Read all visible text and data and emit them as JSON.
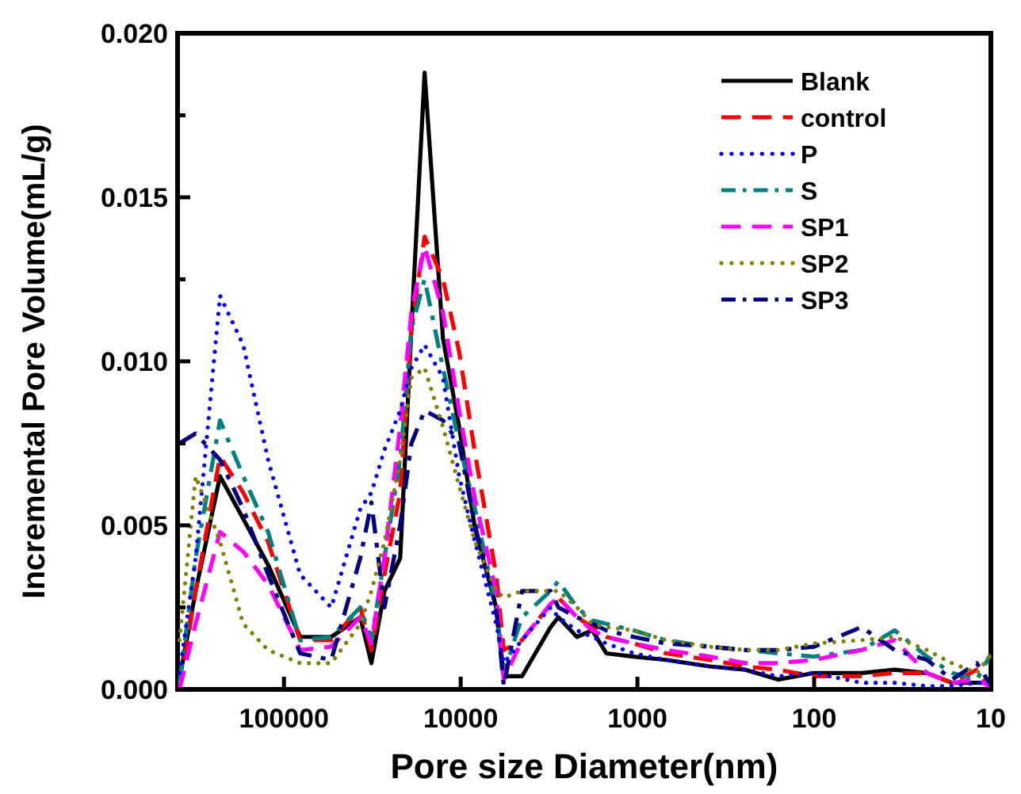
{
  "chart_data": {
    "type": "line",
    "xlabel": "Pore size Diameter(nm)",
    "ylabel": "Incremental Pore Volume(mL/g)",
    "log": "x",
    "xlim": [
      400000,
      10
    ],
    "xticks": [
      100000,
      10000,
      1000,
      100,
      10
    ],
    "ylim": [
      0,
      0.02
    ],
    "yticks": [
      {
        "value": 0,
        "label": "0.000"
      },
      {
        "value": 0.0025,
        "label": null
      },
      {
        "value": 0.005,
        "label": "0.005"
      },
      {
        "value": 0.0075,
        "label": null
      },
      {
        "value": 0.01,
        "label": "0.010"
      },
      {
        "value": 0.0125,
        "label": null
      },
      {
        "value": 0.015,
        "label": "0.015"
      },
      {
        "value": 0.0175,
        "label": null
      },
      {
        "value": 0.02,
        "label": "0.020"
      }
    ],
    "grid": false,
    "legend": "top right",
    "marker": "none",
    "x": [
      390000,
      316000,
      230000,
      170000,
      123000,
      81000,
      54000,
      37000,
      32000,
      27000,
      22000,
      19000,
      16000,
      12600,
      10200,
      8300,
      6300,
      5700,
      4500,
      3100,
      2800,
      2200,
      1800,
      1500,
      1050,
      690,
      390,
      245,
      160,
      100,
      54,
      35,
      23,
      16.6,
      12,
      10.2
    ],
    "series": [
      {
        "name": "Blank",
        "color": "#000000",
        "line_style": "solid",
        "values": [
          0.0003,
          0.003,
          0.0065,
          0.0052,
          0.0038,
          0.0016,
          0.0016,
          0.0022,
          0.0008,
          0.003,
          0.004,
          0.011,
          0.0188,
          0.0107,
          0.008,
          0.0049,
          0.0025,
          0.0004,
          0.0004,
          0.0019,
          0.0022,
          0.0016,
          0.0018,
          0.0011,
          0.001,
          0.0009,
          0.0007,
          0.0006,
          0.0003,
          0.0005,
          0.0005,
          0.0006,
          0.0005,
          0.0002,
          0.0002,
          0.0002
        ]
      },
      {
        "name": "control",
        "color": "#ff0000",
        "line_style": "dashed",
        "values": [
          0,
          0.003,
          0.0071,
          0.006,
          0.0045,
          0.0015,
          0.0015,
          0.0025,
          0.0012,
          0.0035,
          0.006,
          0.011,
          0.0138,
          0.0125,
          0.0103,
          0.0072,
          0.0035,
          0.0012,
          0.0015,
          0.0026,
          0.0028,
          0.0022,
          0.0019,
          0.0016,
          0.0014,
          0.0011,
          0.0009,
          0.0007,
          0.0006,
          0.0004,
          0.0004,
          0.0005,
          0.0005,
          0.0002,
          0.0006,
          0.0001
        ]
      },
      {
        "name": "P",
        "color": "#0000ff",
        "line_style": "dotted",
        "values": [
          0.0005,
          0.004,
          0.012,
          0.0105,
          0.007,
          0.0035,
          0.0025,
          0.0055,
          0.006,
          0.0073,
          0.0085,
          0.0098,
          0.0105,
          0.0095,
          0.0065,
          0.0045,
          0.002,
          0.0008,
          0.0015,
          0.0025,
          0.0022,
          0.0018,
          0.0016,
          0.0014,
          0.0011,
          0.0009,
          0.0007,
          0.0006,
          0.0004,
          0.0005,
          0.0002,
          0.0002,
          0.0001,
          0.0001,
          0.0002,
          0.0002
        ]
      },
      {
        "name": "S",
        "color": "#008080",
        "line_style": "dashdot",
        "values": [
          0.0002,
          0.004,
          0.0082,
          0.0065,
          0.0048,
          0.0015,
          0.0016,
          0.0025,
          0.0015,
          0.004,
          0.007,
          0.011,
          0.0125,
          0.0098,
          0.0075,
          0.0055,
          0.0025,
          0.0005,
          0.0022,
          0.003,
          0.0033,
          0.0025,
          0.0021,
          0.002,
          0.0018,
          0.0015,
          0.0013,
          0.0012,
          0.0011,
          0.001,
          0.0012,
          0.0018,
          0.001,
          0.0005,
          0.0003,
          0.001
        ]
      },
      {
        "name": "SP1",
        "color": "#ff00ff",
        "line_style": "dashed",
        "values": [
          0,
          0.002,
          0.0048,
          0.0042,
          0.0032,
          0.0012,
          0.0013,
          0.0022,
          0.0014,
          0.004,
          0.008,
          0.0115,
          0.0135,
          0.0115,
          0.0085,
          0.0058,
          0.003,
          0.0003,
          0.0015,
          0.0026,
          0.0028,
          0.0022,
          0.0018,
          0.0016,
          0.0014,
          0.0012,
          0.001,
          0.0008,
          0.0008,
          0.0009,
          0.0012,
          0.0015,
          0.0005,
          0.0002,
          0.0003,
          0.0001
        ]
      },
      {
        "name": "SP2",
        "color": "#808000",
        "line_style": "dotted",
        "values": [
          0.0015,
          0.0065,
          0.0045,
          0.002,
          0.0012,
          0.0008,
          0.0008,
          0.002,
          0.003,
          0.0045,
          0.007,
          0.0095,
          0.0098,
          0.008,
          0.0062,
          0.0045,
          0.003,
          0.0028,
          0.003,
          0.003,
          0.003,
          0.0025,
          0.002,
          0.0019,
          0.0018,
          0.0015,
          0.0013,
          0.0012,
          0.0012,
          0.0014,
          0.0015,
          0.0016,
          0.0012,
          0.0008,
          0.0005,
          0.001
        ]
      },
      {
        "name": "SP3",
        "color": "#000080",
        "line_style": "dashdot",
        "values": [
          0.0075,
          0.0078,
          0.007,
          0.0055,
          0.0035,
          0.0011,
          0.0009,
          0.004,
          0.0057,
          0.0025,
          0.005,
          0.0075,
          0.0085,
          0.0082,
          0.0075,
          0.005,
          0.0025,
          0.0001,
          0.003,
          0.003,
          0.0025,
          0.0022,
          0.002,
          0.0018,
          0.0016,
          0.0014,
          0.0013,
          0.0012,
          0.0012,
          0.0013,
          0.0019,
          0.0012,
          0.0009,
          0.0003,
          0.0008,
          0.0002
        ]
      }
    ]
  }
}
